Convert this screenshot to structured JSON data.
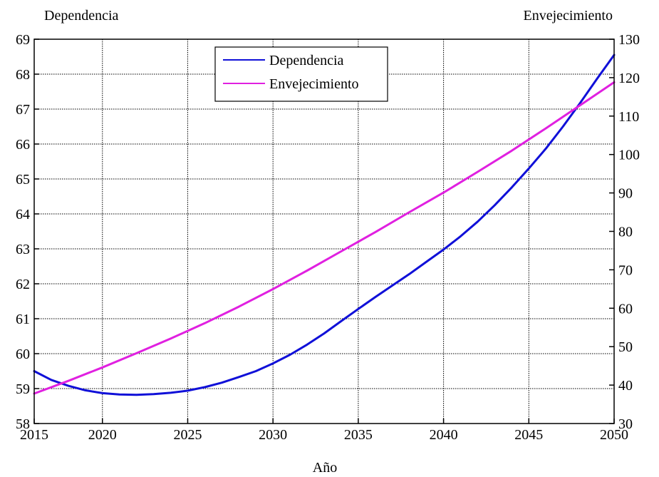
{
  "chart_data": {
    "type": "line",
    "xlabel": "Año",
    "ylabel_left": "Dependencia",
    "ylabel_right": "Envejecimiento",
    "xlim": [
      2016,
      2050
    ],
    "ylim_left": [
      58,
      69
    ],
    "ylim_right": [
      30,
      130
    ],
    "x_ticks": [
      2015,
      2020,
      2025,
      2030,
      2035,
      2040,
      2045,
      2050
    ],
    "y_left_ticks": [
      58,
      59,
      60,
      61,
      62,
      63,
      64,
      65,
      66,
      67,
      68,
      69
    ],
    "y_right_ticks": [
      30,
      40,
      50,
      60,
      70,
      80,
      90,
      100,
      110,
      120,
      130
    ],
    "grid": true,
    "legend_position": "top-center",
    "series": [
      {
        "name": "Dependencia",
        "axis": "left",
        "color": "#1010d8",
        "x": [
          2016,
          2017,
          2018,
          2019,
          2020,
          2021,
          2022,
          2023,
          2024,
          2025,
          2026,
          2027,
          2028,
          2029,
          2030,
          2031,
          2032,
          2033,
          2034,
          2035,
          2036,
          2037,
          2038,
          2039,
          2040,
          2041,
          2042,
          2043,
          2044,
          2045,
          2046,
          2047,
          2048,
          2049,
          2050
        ],
        "values": [
          59.5,
          59.25,
          59.08,
          58.95,
          58.87,
          58.83,
          58.82,
          58.84,
          58.88,
          58.94,
          59.04,
          59.17,
          59.33,
          59.5,
          59.72,
          59.97,
          60.26,
          60.58,
          60.93,
          61.28,
          61.62,
          61.95,
          62.28,
          62.63,
          62.98,
          63.36,
          63.78,
          64.25,
          64.76,
          65.3,
          65.87,
          66.5,
          67.17,
          67.87,
          68.55
        ]
      },
      {
        "name": "Envejecimiento",
        "axis": "right",
        "color": "#e020e0",
        "x": [
          2016,
          2018,
          2020,
          2022,
          2024,
          2026,
          2028,
          2030,
          2032,
          2034,
          2036,
          2038,
          2040,
          2042,
          2044,
          2046,
          2048,
          2050
        ],
        "values": [
          37.8,
          41.1,
          44.6,
          48.3,
          52.1,
          56.1,
          60.4,
          65.0,
          69.8,
          74.8,
          79.8,
          85.0,
          90.1,
          95.5,
          101.0,
          106.8,
          112.8,
          118.8
        ]
      }
    ]
  }
}
